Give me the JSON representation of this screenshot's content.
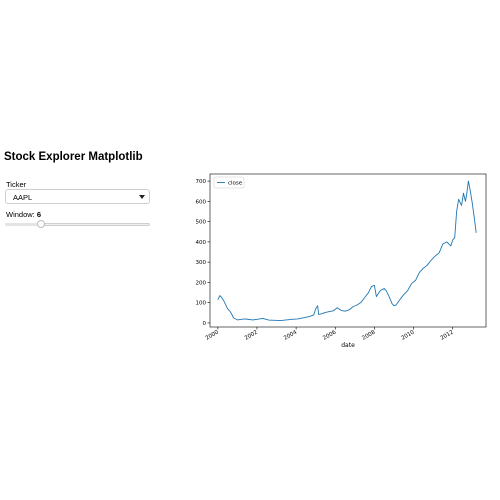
{
  "page": {
    "title": "Stock Explorer Matplotlib"
  },
  "controls": {
    "ticker_label": "Ticker",
    "ticker_value": "AAPL",
    "window_label": "Window: ",
    "window_value": "6",
    "window_fraction": 0.25
  },
  "colors": {
    "series": "#1f77b4"
  },
  "chart_data": {
    "type": "line",
    "xlabel": "date",
    "ylabel": "",
    "legend": "upper-left",
    "grid": false,
    "xlim": [
      1999.6,
      2013.7
    ],
    "ylim": [
      -20,
      735
    ],
    "xticks": [
      2000,
      2002,
      2004,
      2006,
      2008,
      2010,
      2012
    ],
    "xtick_labels": [
      "2000",
      "2002",
      "2004",
      "2006",
      "2008",
      "2010",
      "2012"
    ],
    "yticks": [
      0,
      100,
      200,
      300,
      400,
      500,
      600,
      700
    ],
    "ytick_labels": [
      "0",
      "100",
      "200",
      "300",
      "400",
      "500",
      "600",
      "700"
    ],
    "series": [
      {
        "name": "close",
        "x": [
          2000.0,
          2000.1,
          2000.2,
          2000.3,
          2000.5,
          2000.6,
          2000.7,
          2000.8,
          2000.9,
          2001.0,
          2001.2,
          2001.4,
          2001.6,
          2001.8,
          2002.0,
          2002.3,
          2002.6,
          2002.9,
          2003.2,
          2003.5,
          2003.8,
          2004.1,
          2004.4,
          2004.7,
          2004.9,
          2005.0,
          2005.1,
          2005.15,
          2005.3,
          2005.5,
          2005.7,
          2005.9,
          2006.1,
          2006.3,
          2006.5,
          2006.7,
          2006.9,
          2007.1,
          2007.3,
          2007.5,
          2007.7,
          2007.85,
          2008.0,
          2008.1,
          2008.3,
          2008.5,
          2008.6,
          2008.75,
          2008.9,
          2009.0,
          2009.1,
          2009.3,
          2009.5,
          2009.7,
          2009.9,
          2010.1,
          2010.3,
          2010.5,
          2010.7,
          2010.9,
          2011.1,
          2011.3,
          2011.5,
          2011.7,
          2011.9,
          2012.0,
          2012.1,
          2012.2,
          2012.3,
          2012.45,
          2012.55,
          2012.65,
          2012.72,
          2012.8,
          2012.9,
          2013.0,
          2013.1,
          2013.2
        ],
        "y": [
          115,
          135,
          125,
          110,
          70,
          60,
          45,
          25,
          20,
          15,
          18,
          20,
          17,
          15,
          18,
          22,
          14,
          13,
          12,
          15,
          18,
          20,
          26,
          32,
          40,
          70,
          85,
          42,
          45,
          52,
          56,
          60,
          75,
          62,
          58,
          64,
          80,
          88,
          100,
          125,
          150,
          180,
          185,
          130,
          160,
          170,
          160,
          130,
          95,
          85,
          88,
          115,
          140,
          160,
          195,
          210,
          250,
          270,
          285,
          310,
          330,
          345,
          390,
          400,
          380,
          410,
          420,
          550,
          610,
          580,
          640,
          600,
          640,
          700,
          650,
          590,
          520,
          445
        ]
      }
    ]
  }
}
